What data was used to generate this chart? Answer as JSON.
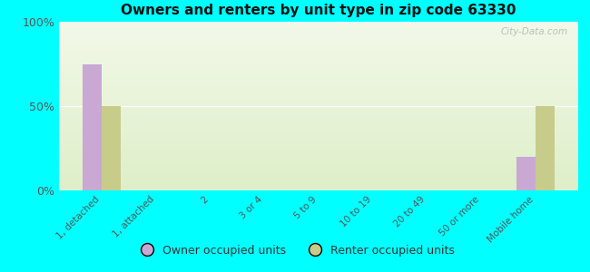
{
  "title": "Owners and renters by unit type in zip code 63330",
  "categories": [
    "1, detached",
    "1, attached",
    "2",
    "3 or 4",
    "5 to 9",
    "10 to 19",
    "20 to 49",
    "50 or more",
    "Mobile home"
  ],
  "owner_values": [
    75,
    0,
    0,
    0,
    0,
    0,
    0,
    0,
    20
  ],
  "renter_values": [
    50,
    0,
    0,
    0,
    0,
    0,
    0,
    0,
    50
  ],
  "owner_color": "#c9a8d4",
  "renter_color": "#c8cc8a",
  "background_color": "#00ffff",
  "plot_bg_top": "#f2f8e8",
  "plot_bg_bottom": "#ddeec8",
  "yticks": [
    0,
    50,
    100
  ],
  "ylim": [
    0,
    100
  ],
  "watermark": "City-Data.com",
  "legend_owner": "Owner occupied units",
  "legend_renter": "Renter occupied units"
}
